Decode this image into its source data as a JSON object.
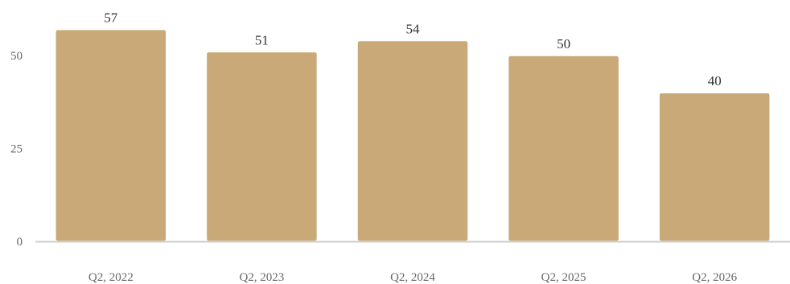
{
  "chart_data": {
    "type": "bar",
    "title": "",
    "xlabel": "",
    "ylabel": "",
    "categories": [
      "Q2, 2022",
      "Q2, 2023",
      "Q2, 2024",
      "Q2, 2025",
      "Q2, 2026"
    ],
    "series": [
      {
        "values": [
          57,
          51,
          54,
          50,
          40
        ]
      }
    ],
    "data_labels": [
      "57",
      "51",
      "54",
      "50",
      "40"
    ],
    "ylim": [
      0,
      63
    ],
    "yticks": [
      0,
      25,
      50
    ],
    "ytick_labels": [
      "0",
      "25",
      "50"
    ],
    "grid": false,
    "legend": "none",
    "colors": {
      "bar": "#c8a977",
      "bar_border": "#ffffff",
      "axis": "#cccccc"
    }
  }
}
